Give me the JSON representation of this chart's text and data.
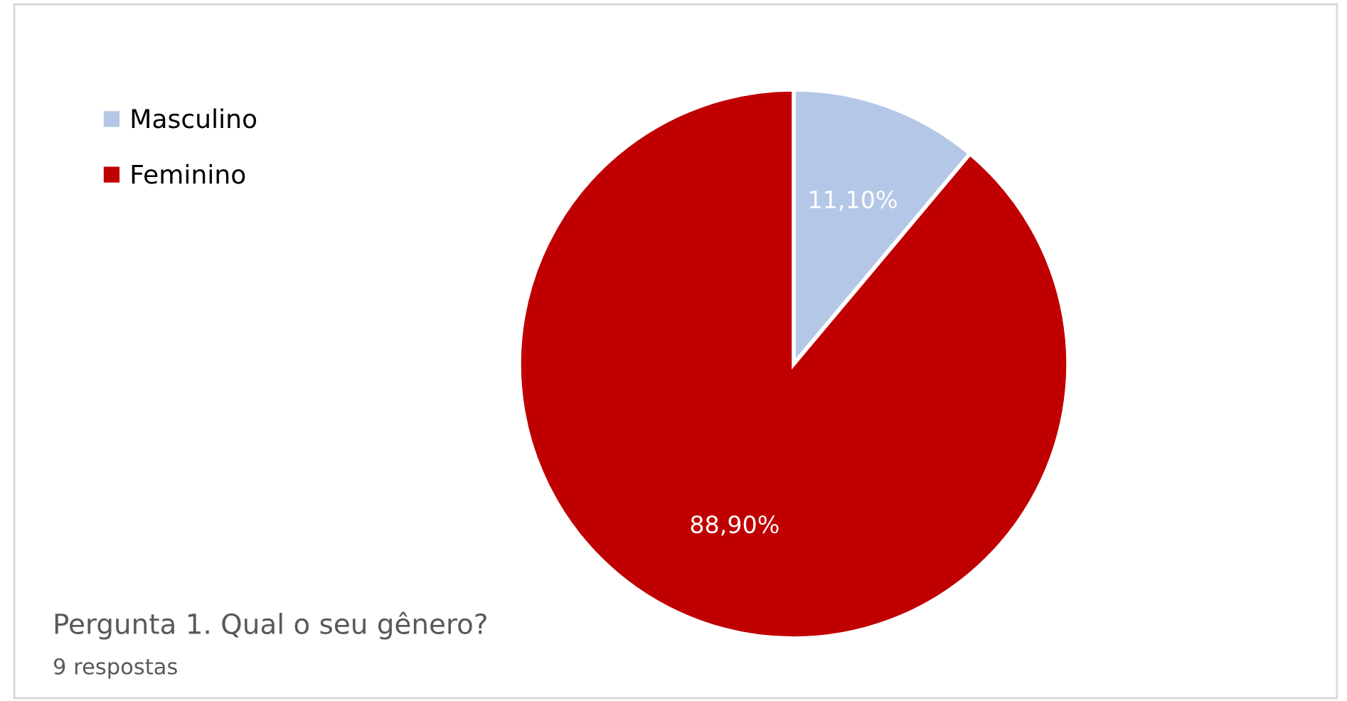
{
  "chart_data": {
    "type": "pie",
    "title": "Pergunta 1. Qual o seu gênero?",
    "subtitle": "9 respostas",
    "categories": [
      "Masculino",
      "Feminino"
    ],
    "values": [
      11.1,
      88.9
    ],
    "value_labels": [
      "11,10%",
      "88,90%"
    ],
    "colors": [
      "#b4c7e7",
      "#c00000"
    ],
    "legend": "top left"
  }
}
